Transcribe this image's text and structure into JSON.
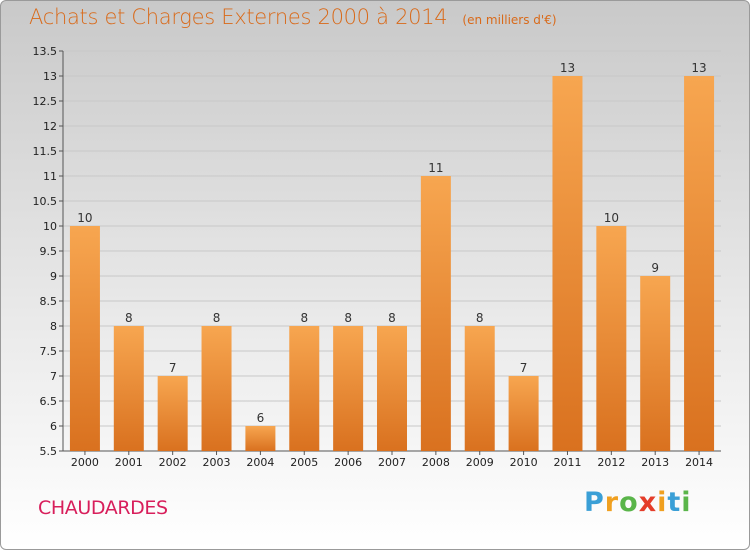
{
  "header": {
    "title": "Achats et Charges Externes 2000 à 2014",
    "subtitle": "(en milliers d'€)"
  },
  "footer": {
    "place": "CHAUDARDES",
    "logo_letters": [
      "P",
      "r",
      "o",
      "x",
      "i",
      "t",
      "i"
    ],
    "logo_colors": [
      "#3a9fd6",
      "#f0a020",
      "#5ab54a",
      "#e43d2a",
      "#f0a020",
      "#3a9fd6",
      "#5ab54a"
    ]
  },
  "chart_data": {
    "type": "bar",
    "title": "Achats et Charges Externes 2000 à 2014",
    "subtitle": "(en milliers d'€)",
    "xlabel": "",
    "ylabel": "",
    "categories": [
      "2000",
      "2001",
      "2002",
      "2003",
      "2004",
      "2005",
      "2006",
      "2007",
      "2008",
      "2009",
      "2010",
      "2011",
      "2012",
      "2013",
      "2014"
    ],
    "values": [
      10,
      8,
      7,
      8,
      6,
      8,
      8,
      8,
      11,
      8,
      7,
      13,
      10,
      9,
      13
    ],
    "data_labels": [
      "10",
      "8",
      "7",
      "8",
      "6",
      "8",
      "8",
      "8",
      "11",
      "8",
      "7",
      "13",
      "10",
      "9",
      "13"
    ],
    "ylim": [
      5.5,
      13.5
    ],
    "yticks": [
      5.5,
      6,
      6.5,
      7,
      7.5,
      8,
      8.5,
      9,
      9.5,
      10,
      10.5,
      11,
      11.5,
      12,
      12.5,
      13,
      13.5
    ],
    "ytick_labels": [
      "5.5",
      "6",
      "6.5",
      "7",
      "7.5",
      "8",
      "8.5",
      "9",
      "9.5",
      "10",
      "10.5",
      "11",
      "11.5",
      "12",
      "12.5",
      "13",
      "13.5"
    ],
    "grid": true,
    "bar_color_top": "#f7a650",
    "bar_color_bottom": "#d9711f"
  }
}
